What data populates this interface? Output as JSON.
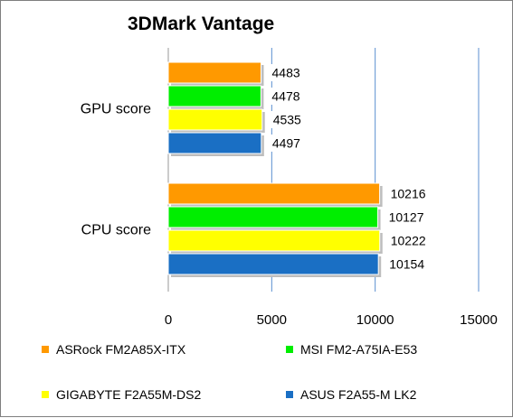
{
  "chart_data": {
    "type": "bar",
    "orientation": "horizontal",
    "title": "3DMark Vantage",
    "xlabel": "",
    "ylabel": "",
    "categories": [
      "GPU score",
      "CPU score"
    ],
    "series": [
      {
        "name": "ASRock FM2A85X-ITX",
        "color": "#ff9900",
        "values": [
          4483,
          10216
        ]
      },
      {
        "name": "MSI FM2-A75IA-E53",
        "color": "#00ee00",
        "values": [
          4478,
          10127
        ]
      },
      {
        "name": "GIGABYTE F2A55M-DS2",
        "color": "#ffff00",
        "values": [
          4535,
          10222
        ]
      },
      {
        "name": "ASUS F2A55-M LK2",
        "color": "#1a6fc4",
        "values": [
          4497,
          10154
        ]
      }
    ],
    "xlim": [
      0,
      15000
    ],
    "xticks": [
      0,
      5000,
      10000,
      15000
    ],
    "grid": true,
    "legend_position": "bottom",
    "data_labels": true
  }
}
